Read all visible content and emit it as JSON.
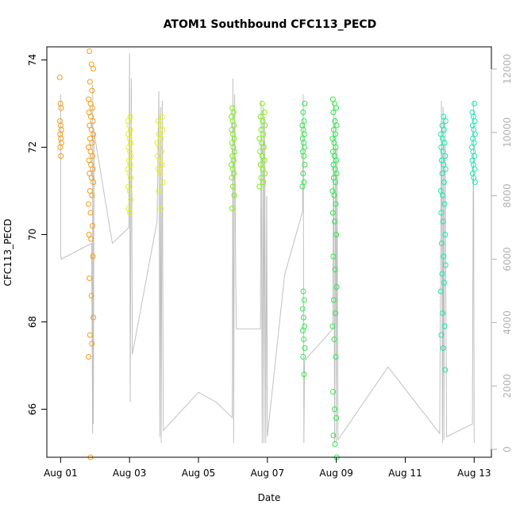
{
  "chart_data": {
    "type": "scatter",
    "title": "ATOM1 Southbound CFC113_PECD",
    "xlabel": "Date",
    "ylabel": "CFC113_PECD",
    "x_tick_labels": [
      "Aug 01",
      "Aug 03",
      "Aug 05",
      "Aug 07",
      "Aug 09",
      "Aug 11",
      "Aug 13"
    ],
    "x_tick_days": [
      1,
      3,
      5,
      7,
      9,
      11,
      13
    ],
    "xlim_days": [
      0.6,
      13.5
    ],
    "y_ticks": [
      66,
      68,
      70,
      72,
      74
    ],
    "ylim": [
      64.9,
      74.3
    ],
    "right_axis": {
      "ticks": [
        0,
        2000,
        4000,
        6000,
        8000,
        10000,
        12000
      ],
      "ylim": [
        -250,
        12700
      ],
      "color": "#b0b0b0"
    },
    "grid": false,
    "series": [
      {
        "color": "#F39C12",
        "clusters": [
          {
            "day": 1.0,
            "width": 0.05,
            "values": [
              73.6,
              73.0,
              72.9,
              72.6,
              72.5,
              72.4,
              72.3,
              72.2,
              72.1,
              72.0,
              71.8
            ]
          },
          {
            "day": 1.88,
            "width": 0.14,
            "values": [
              74.2,
              73.9,
              73.8,
              73.5,
              73.3,
              73.1,
              73.0,
              72.9,
              72.8,
              72.7,
              72.6,
              72.5,
              72.4,
              72.3,
              72.2,
              72.1,
              72.0,
              71.9,
              71.8,
              71.7,
              71.6,
              71.5,
              71.4,
              71.3,
              71.2,
              71.0,
              70.9,
              70.7,
              70.5,
              70.2,
              70.0,
              69.9,
              69.5,
              69.0,
              68.6,
              68.1,
              67.7,
              67.5,
              67.2,
              64.9
            ]
          }
        ]
      },
      {
        "color": "#E3F01F",
        "clusters": [
          {
            "day": 3.0,
            "width": 0.09,
            "values": [
              72.7,
              72.6,
              72.5,
              72.4,
              72.3,
              72.2,
              72.1,
              72.0,
              71.9,
              71.8,
              71.7,
              71.6,
              71.5,
              71.4,
              71.3,
              71.1,
              71.0,
              70.8,
              70.6,
              70.5
            ]
          },
          {
            "day": 3.88,
            "width": 0.16,
            "values": [
              72.7,
              72.6,
              72.5,
              72.4,
              72.3,
              72.2,
              72.1,
              72.0,
              71.9,
              71.8,
              71.7,
              71.6,
              71.5,
              71.4,
              71.2,
              71.0,
              70.6
            ]
          }
        ]
      },
      {
        "color": "#7CF00F",
        "clusters": [
          {
            "day": 6.0,
            "width": 0.09,
            "values": [
              72.9,
              72.8,
              72.7,
              72.6,
              72.5,
              72.4,
              72.3,
              72.2,
              72.1,
              72.0,
              71.9,
              71.8,
              71.7,
              71.6,
              71.5,
              71.4,
              71.3,
              71.1,
              70.9,
              70.6
            ]
          },
          {
            "day": 6.85,
            "width": 0.16,
            "values": [
              73.0,
              72.8,
              72.7,
              72.6,
              72.5,
              72.4,
              72.3,
              72.2,
              72.1,
              72.0,
              71.9,
              71.8,
              71.7,
              71.6,
              71.5,
              71.4,
              71.3,
              71.2,
              71.1
            ]
          }
        ]
      },
      {
        "color": "#2EE84C",
        "clusters": [
          {
            "day": 8.05,
            "width": 0.07,
            "values": [
              73.0,
              72.8,
              72.6,
              72.5,
              72.4,
              72.3,
              72.2,
              72.1,
              72.0,
              71.9,
              71.8,
              71.6,
              71.4,
              71.2,
              71.1,
              68.7,
              68.5,
              68.3,
              68.1,
              67.9,
              67.8,
              67.6,
              67.4,
              67.2,
              66.8
            ]
          },
          {
            "day": 8.95,
            "width": 0.12,
            "values": [
              73.1,
              73.0,
              72.9,
              72.8,
              72.6,
              72.5,
              72.4,
              72.3,
              72.2,
              72.1,
              72.0,
              71.9,
              71.8,
              71.7,
              71.6,
              71.5,
              71.4,
              71.3,
              71.2,
              71.0,
              70.9,
              70.7,
              70.5,
              70.3,
              70.0,
              69.5,
              69.2,
              68.8,
              68.5,
              68.2,
              67.9,
              67.6,
              67.2,
              66.4,
              66.0,
              65.8,
              65.4,
              65.2,
              64.9
            ]
          }
        ]
      },
      {
        "color": "#19E8B2",
        "clusters": [
          {
            "day": 12.1,
            "width": 0.14,
            "values": [
              72.7,
              72.6,
              72.5,
              72.4,
              72.3,
              72.2,
              72.1,
              72.0,
              71.9,
              71.8,
              71.7,
              71.6,
              71.5,
              71.4,
              71.2,
              71.0,
              70.9,
              70.7,
              70.5,
              70.3,
              70.0,
              69.8,
              69.5,
              69.3,
              69.1,
              68.9,
              68.7,
              68.2,
              67.9,
              67.7,
              67.4,
              66.9
            ]
          },
          {
            "day": 12.98,
            "width": 0.09,
            "values": [
              73.0,
              72.8,
              72.7,
              72.6,
              72.5,
              72.4,
              72.3,
              72.2,
              72.1,
              72.0,
              71.9,
              71.8,
              71.7,
              71.6,
              71.5,
              71.4,
              71.3,
              71.2
            ]
          }
        ]
      }
    ],
    "secondary_line": {
      "color": "#c0c0c0",
      "points": [
        [
          1.0,
          11200
        ],
        [
          1.0,
          6200
        ],
        [
          1.02,
          6000
        ],
        [
          1.9,
          6500
        ],
        [
          1.93,
          500
        ],
        [
          1.93,
          11500
        ],
        [
          1.95,
          800
        ],
        [
          1.97,
          10000
        ],
        [
          2.5,
          6500
        ],
        [
          2.98,
          7000
        ],
        [
          3.0,
          12500
        ],
        [
          3.02,
          1500
        ],
        [
          3.05,
          11700
        ],
        [
          3.08,
          3000
        ],
        [
          3.8,
          7200
        ],
        [
          3.85,
          11300
        ],
        [
          3.88,
          400
        ],
        [
          3.9,
          10800
        ],
        [
          3.92,
          200
        ],
        [
          3.95,
          11000
        ],
        [
          3.98,
          600
        ],
        [
          5.0,
          1800
        ],
        [
          5.5,
          1500
        ],
        [
          5.98,
          1000
        ],
        [
          6.0,
          11700
        ],
        [
          6.02,
          200
        ],
        [
          6.05,
          11200
        ],
        [
          6.08,
          5500
        ],
        [
          6.1,
          3800
        ],
        [
          6.8,
          3800
        ],
        [
          6.82,
          11000
        ],
        [
          6.85,
          200
        ],
        [
          6.88,
          10800
        ],
        [
          6.9,
          200
        ],
        [
          6.92,
          10500
        ],
        [
          6.95,
          200
        ],
        [
          6.98,
          8000
        ],
        [
          7.0,
          400
        ],
        [
          7.5,
          5500
        ],
        [
          8.02,
          7500
        ],
        [
          8.04,
          11200
        ],
        [
          8.06,
          200
        ],
        [
          8.08,
          2800
        ],
        [
          8.9,
          3800
        ],
        [
          8.92,
          11000
        ],
        [
          8.95,
          200
        ],
        [
          8.98,
          10500
        ],
        [
          9.0,
          200
        ],
        [
          9.02,
          9500
        ],
        [
          9.05,
          300
        ],
        [
          10.5,
          2600
        ],
        [
          12.0,
          500
        ],
        [
          12.05,
          11000
        ],
        [
          12.08,
          200
        ],
        [
          12.1,
          10800
        ],
        [
          12.12,
          300
        ],
        [
          12.15,
          10500
        ],
        [
          12.2,
          400
        ],
        [
          12.95,
          800
        ],
        [
          12.98,
          11000
        ],
        [
          13.0,
          200
        ],
        [
          13.0,
          1800
        ]
      ]
    }
  }
}
